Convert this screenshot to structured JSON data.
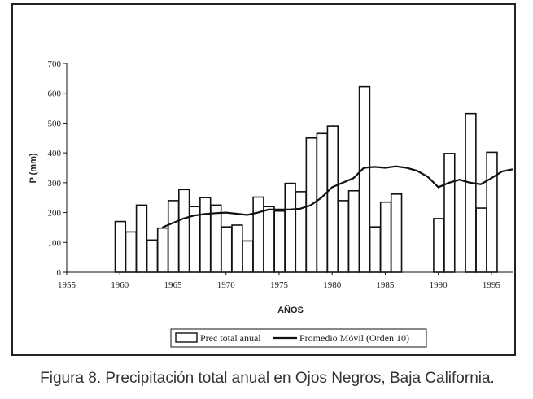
{
  "chart_data": {
    "type": "bar",
    "xlabel": "AÑOS",
    "ylabel": "P (mm)",
    "xlim": [
      1955,
      1997
    ],
    "ylim": [
      0,
      700
    ],
    "x_ticks": [
      1955,
      1960,
      1965,
      1970,
      1975,
      1980,
      1985,
      1990,
      1995
    ],
    "y_ticks": [
      0,
      100,
      200,
      300,
      400,
      500,
      600,
      700
    ],
    "grid": false,
    "legend_position": "bottom-center",
    "series": [
      {
        "name": "Prec total anual",
        "type": "bar",
        "years": [
          1960,
          1961,
          1962,
          1963,
          1964,
          1965,
          1966,
          1967,
          1968,
          1969,
          1970,
          1971,
          1972,
          1973,
          1974,
          1975,
          1976,
          1977,
          1978,
          1979,
          1980,
          1981,
          1982,
          1983,
          1984,
          1985,
          1986,
          1990,
          1991,
          1993,
          1994,
          1995
        ],
        "values": [
          170,
          135,
          225,
          108,
          148,
          240,
          277,
          220,
          250,
          225,
          152,
          158,
          105,
          252,
          220,
          205,
          298,
          270,
          450,
          465,
          490,
          240,
          273,
          622,
          152,
          235,
          262,
          180,
          398,
          532,
          215,
          402
        ]
      },
      {
        "name": "Promedio Móvil (Orden 10)",
        "type": "line",
        "x": [
          1964,
          1965,
          1966,
          1967,
          1968,
          1969,
          1970,
          1971,
          1972,
          1973,
          1974,
          1975,
          1976,
          1977,
          1978,
          1979,
          1980,
          1981,
          1982,
          1983,
          1984,
          1985,
          1986,
          1987,
          1988,
          1989,
          1990,
          1991,
          1992,
          1993,
          1994,
          1995,
          1996,
          1997
        ],
        "y": [
          150,
          165,
          180,
          190,
          195,
          198,
          200,
          196,
          192,
          200,
          210,
          210,
          210,
          213,
          225,
          250,
          285,
          300,
          315,
          350,
          353,
          350,
          355,
          350,
          340,
          320,
          285,
          300,
          310,
          300,
          295,
          315,
          338,
          345
        ]
      }
    ]
  },
  "caption": "Figura 8. Precipitación total anual en Ojos Negros, Baja California."
}
